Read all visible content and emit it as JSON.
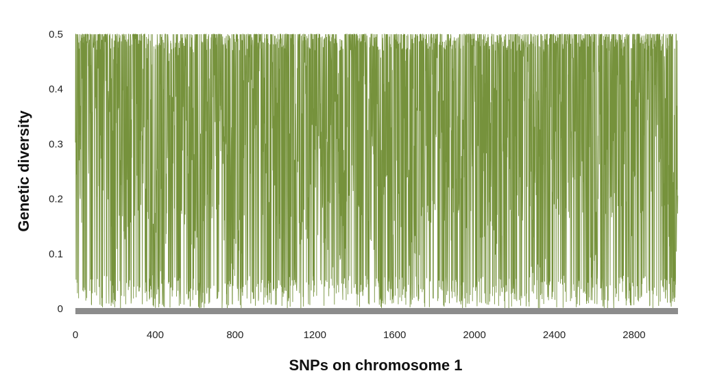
{
  "chart_data": {
    "type": "line",
    "title": "",
    "xlabel": "SNPs on chromosome 1",
    "ylabel": "Genetic diversity",
    "xlim": [
      0,
      3020
    ],
    "ylim": [
      0,
      0.5
    ],
    "x_ticks": [
      0,
      400,
      800,
      1200,
      1600,
      2000,
      2400,
      2800
    ],
    "x_tick_labels": [
      "0",
      "400",
      "800",
      "1200",
      "1600",
      "2000",
      "2400",
      "2800"
    ],
    "y_ticks": [
      0,
      0.1,
      0.2,
      0.3,
      0.4,
      0.5
    ],
    "y_tick_labels": [
      "0",
      "0.1",
      "0.2",
      "0.3",
      "0.4",
      "0.5"
    ],
    "grid": false,
    "legend": "none",
    "series": [
      {
        "color": "#76923c",
        "n_points": 3020,
        "value_range": [
          0,
          0.5
        ],
        "sampled_x": [
          0,
          100,
          200,
          300,
          400,
          500,
          600,
          700,
          800,
          900,
          1000,
          1100,
          1200,
          1300,
          1400,
          1500,
          1600,
          1700,
          1800,
          1900,
          2000,
          2100,
          2200,
          2300,
          2400,
          2500,
          2600,
          2700,
          2800,
          2900,
          3000
        ],
        "sampled_y": [
          0.41,
          0.47,
          0.36,
          0.44,
          0.3,
          0.42,
          0.38,
          0.45,
          0.33,
          0.46,
          0.4,
          0.35,
          0.43,
          0.28,
          0.48,
          0.37,
          0.41,
          0.31,
          0.44,
          0.39,
          0.42,
          0.34,
          0.46,
          0.29,
          0.4,
          0.45,
          0.32,
          0.43,
          0.38,
          0.47,
          0.36
        ]
      }
    ]
  }
}
